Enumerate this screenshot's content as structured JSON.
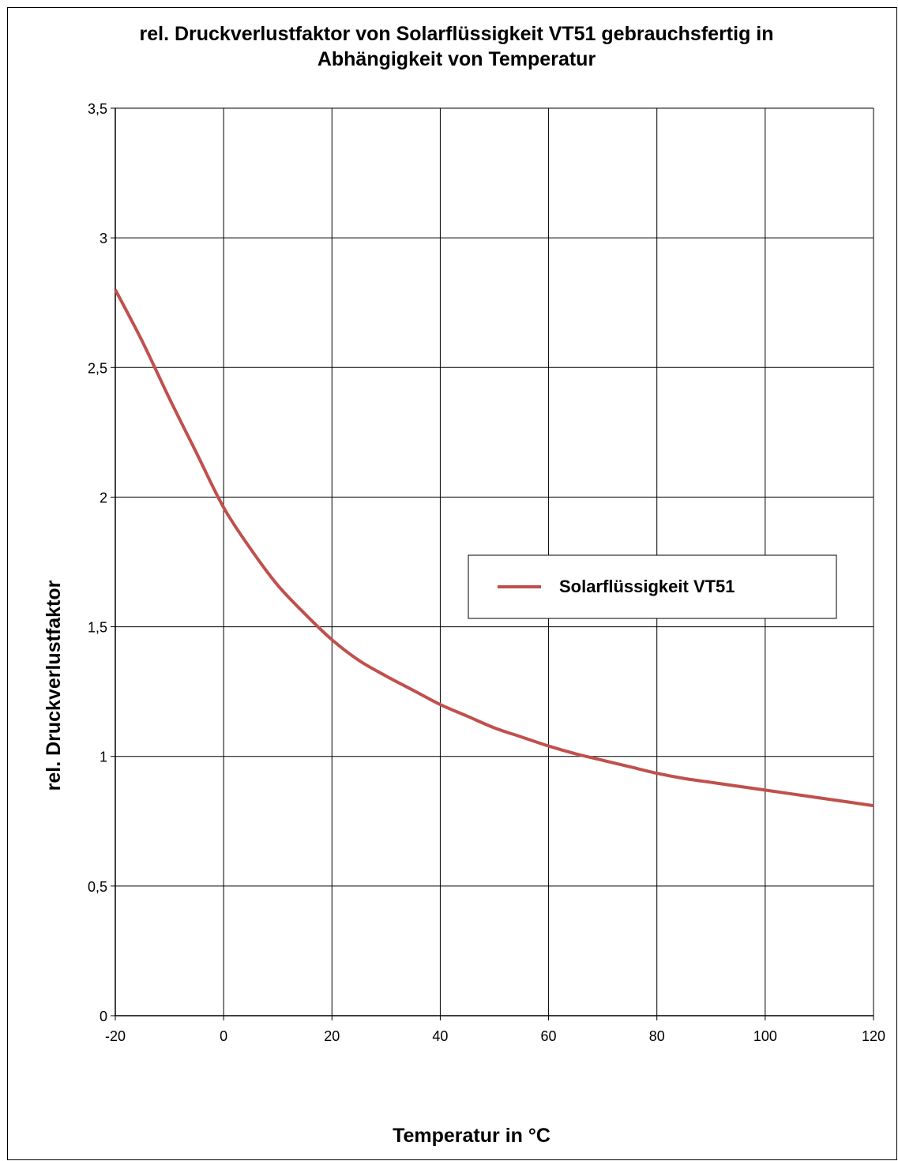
{
  "colors": {
    "series": "#c0504d",
    "grid": "#000000",
    "background": "#ffffff"
  },
  "chart_data": {
    "type": "line",
    "title_lines": [
      "rel. Druckverlustfaktor von Solarflüssigkeit VT51 gebrauchsfertig in",
      "Abhängigkeit von Temperatur"
    ],
    "xlabel": "Temperatur in °C",
    "ylabel": "rel. Druckverlustfaktor",
    "xlim": [
      -20,
      120
    ],
    "ylim": [
      0,
      3.5
    ],
    "x_ticks": [
      "-20",
      "0",
      "20",
      "40",
      "60",
      "80",
      "100",
      "120"
    ],
    "y_ticks": [
      "0",
      "0,5",
      "1",
      "1,5",
      "2",
      "2,5",
      "3",
      "3,5"
    ],
    "grid": true,
    "legend_position": "right-middle",
    "series": [
      {
        "name": "Solarflüssigkeit VT51",
        "x": [
          -20,
          -15,
          -10,
          -5,
          0,
          5,
          10,
          15,
          20,
          25,
          30,
          35,
          40,
          45,
          50,
          55,
          60,
          65,
          70,
          75,
          80,
          85,
          90,
          95,
          100,
          105,
          110,
          115,
          120
        ],
        "y": [
          2.8,
          2.6,
          2.38,
          2.17,
          1.96,
          1.8,
          1.66,
          1.55,
          1.45,
          1.37,
          1.31,
          1.255,
          1.2,
          1.155,
          1.11,
          1.075,
          1.04,
          1.01,
          0.985,
          0.96,
          0.935,
          0.915,
          0.9,
          0.885,
          0.87,
          0.855,
          0.84,
          0.825,
          0.81
        ]
      }
    ]
  }
}
